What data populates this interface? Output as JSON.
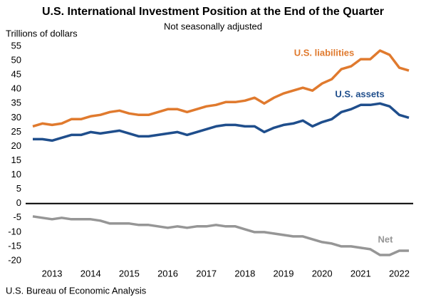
{
  "chart_data": {
    "type": "line",
    "title": "U.S. International Investment Position at the End of the Quarter",
    "subtitle": "Not seasonally adjusted",
    "y_label": "Trillions of dollars",
    "source": "U.S. Bureau of Economic Analysis",
    "x": [
      2013,
      2013.25,
      2013.5,
      2013.75,
      2014,
      2014.25,
      2014.5,
      2014.75,
      2015,
      2015.25,
      2015.5,
      2015.75,
      2016,
      2016.25,
      2016.5,
      2016.75,
      2017,
      2017.25,
      2017.5,
      2017.75,
      2018,
      2018.25,
      2018.5,
      2018.75,
      2019,
      2019.25,
      2019.5,
      2019.75,
      2020,
      2020.25,
      2020.5,
      2020.75,
      2021,
      2021.25,
      2021.5,
      2021.75,
      2022,
      2022.25,
      2022.5,
      2022.75
    ],
    "xlim": [
      2013,
      2022.75
    ],
    "xticks": [
      {
        "value": 2013.5,
        "label": "2013"
      },
      {
        "value": 2014.5,
        "label": "2014"
      },
      {
        "value": 2015.5,
        "label": "2015"
      },
      {
        "value": 2016.5,
        "label": "2016"
      },
      {
        "value": 2017.5,
        "label": "2017"
      },
      {
        "value": 2018.5,
        "label": "2018"
      },
      {
        "value": 2019.5,
        "label": "2019"
      },
      {
        "value": 2020.5,
        "label": "2020"
      },
      {
        "value": 2021.5,
        "label": "2021"
      },
      {
        "value": 2022.5,
        "label": "2022"
      }
    ],
    "ylim": [
      -20,
      55
    ],
    "yticks": [
      -20,
      -15,
      -10,
      -5,
      0,
      5,
      10,
      15,
      20,
      25,
      30,
      35,
      40,
      45,
      50,
      55
    ],
    "grid": false,
    "legend": false,
    "series": [
      {
        "name": "U.S. liabilities",
        "color": "#e07a2e",
        "values": [
          27,
          28,
          27.5,
          28,
          29.5,
          29.5,
          30.5,
          31,
          32,
          32.5,
          31.5,
          31,
          31,
          32,
          33,
          33,
          32,
          33,
          34,
          34.5,
          35.5,
          35.5,
          36,
          37,
          35,
          37,
          38.5,
          39.5,
          40.5,
          39.5,
          42,
          43.5,
          47,
          48,
          50.5,
          50.5,
          53.5,
          52,
          47.5,
          46.5
        ]
      },
      {
        "name": "U.S. assets",
        "color": "#1f4e8c",
        "values": [
          22.5,
          22.5,
          22,
          23,
          24,
          24,
          25,
          24.5,
          25,
          25.5,
          24.5,
          23.5,
          23.5,
          24,
          24.5,
          25,
          24,
          25,
          26,
          27,
          27.5,
          27.5,
          27,
          27,
          25,
          26.5,
          27.5,
          28,
          29,
          27,
          28.5,
          29.5,
          32,
          33,
          34.5,
          34.5,
          35,
          34,
          31,
          30
        ]
      },
      {
        "name": "Net",
        "color": "#969696",
        "values": [
          -4.5,
          -5,
          -5.5,
          -5,
          -5.5,
          -5.5,
          -5.5,
          -6,
          -7,
          -7,
          -7,
          -7.5,
          -7.5,
          -8,
          -8.5,
          -8,
          -8.5,
          -8,
          -8,
          -7.5,
          -8,
          -8,
          -9,
          -10,
          -10,
          -10.5,
          -11,
          -11.5,
          -11.5,
          -12.5,
          -13.5,
          -14,
          -15,
          -15,
          -15.5,
          -16,
          -18,
          -18,
          -16.5,
          -16.5
        ]
      }
    ]
  }
}
